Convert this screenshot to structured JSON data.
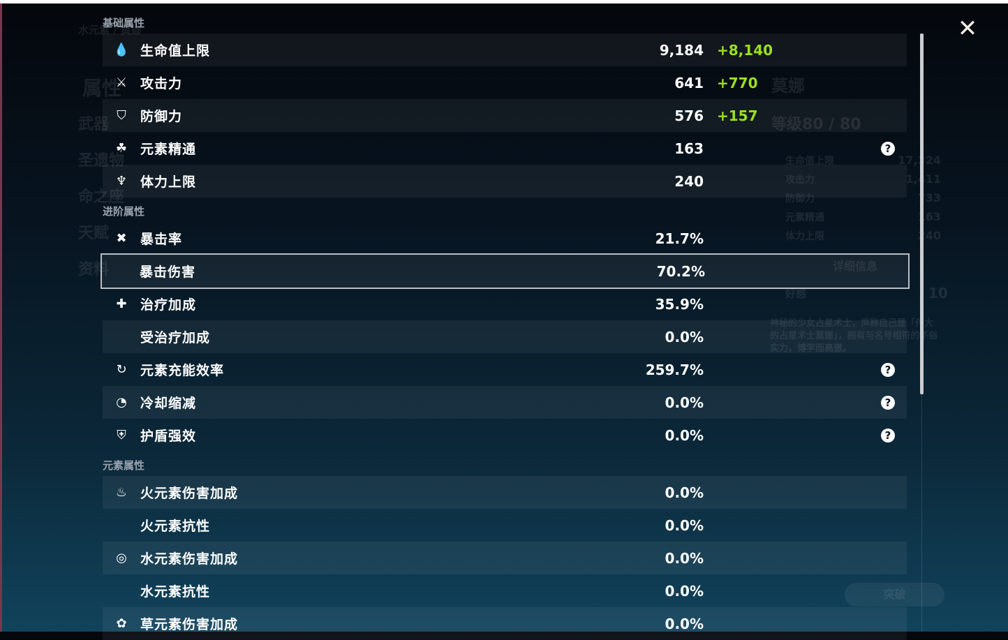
{
  "background": {
    "element_path": "水元素 / 莫娜",
    "side_menu": [
      "属性",
      "武器",
      "圣遗物",
      "命之座",
      "天赋",
      "资料"
    ],
    "character_name": "莫娜",
    "level": "等级80 / 80",
    "summary": [
      [
        "生命值上限",
        "17,324"
      ],
      [
        "攻击力",
        "1,411"
      ],
      [
        "防御力",
        "733"
      ],
      [
        "元素精通",
        "163"
      ],
      [
        "体力上限",
        "240"
      ]
    ],
    "details_button": "详细信息",
    "friendship": [
      "好感",
      "10"
    ],
    "description": "神秘的少女占星术士，声称自己是「伟大的占星术士莫娜」，拥有与名号相符的不俗实力，博学而高傲。",
    "ascend_button": "突破"
  },
  "close_label": "✕",
  "sections": [
    {
      "title": "基础属性",
      "rows": [
        {
          "icon": "hp-drop-icon",
          "glyph": "💧",
          "label": "生命值上限",
          "value": "9,184",
          "bonus": "+8,140"
        },
        {
          "icon": "attack-sword-icon",
          "glyph": "⚔",
          "label": "攻击力",
          "value": "641",
          "bonus": "+770"
        },
        {
          "icon": "defense-shield-icon",
          "glyph": "⛉",
          "label": "防御力",
          "value": "576",
          "bonus": "+157"
        },
        {
          "icon": "elemental-mastery-icon",
          "glyph": "☘",
          "label": "元素精通",
          "value": "163",
          "help": true
        },
        {
          "icon": "stamina-icon",
          "glyph": "♆",
          "label": "体力上限",
          "value": "240"
        }
      ]
    },
    {
      "title": "进阶属性",
      "rows": [
        {
          "icon": "crit-rate-icon",
          "glyph": "✖",
          "label": "暴击率",
          "value": "21.7%"
        },
        {
          "icon": "crit-dmg-icon",
          "glyph": "",
          "label": "暴击伤害",
          "value": "70.2%",
          "selected": true
        },
        {
          "icon": "healing-bonus-icon",
          "glyph": "✚",
          "label": "治疗加成",
          "value": "35.9%"
        },
        {
          "icon": "",
          "glyph": "",
          "label": "受治疗加成",
          "value": "0.0%"
        },
        {
          "icon": "energy-recharge-icon",
          "glyph": "↻",
          "label": "元素充能效率",
          "value": "259.7%",
          "help": true
        },
        {
          "icon": "cooldown-reduction-icon",
          "glyph": "◔",
          "label": "冷却缩减",
          "value": "0.0%",
          "help": true
        },
        {
          "icon": "shield-strength-icon",
          "glyph": "⛨",
          "label": "护盾强效",
          "value": "0.0%",
          "help": true
        }
      ]
    },
    {
      "title": "元素属性",
      "rows": [
        {
          "icon": "pyro-icon",
          "glyph": "♨",
          "label": "火元素伤害加成",
          "value": "0.0%"
        },
        {
          "icon": "",
          "glyph": "",
          "label": "火元素抗性",
          "value": "0.0%"
        },
        {
          "icon": "hydro-icon",
          "glyph": "◎",
          "label": "水元素伤害加成",
          "value": "0.0%"
        },
        {
          "icon": "",
          "glyph": "",
          "label": "水元素抗性",
          "value": "0.0%"
        },
        {
          "icon": "dendro-icon",
          "glyph": "✿",
          "label": "草元素伤害加成",
          "value": "0.0%"
        }
      ]
    }
  ]
}
